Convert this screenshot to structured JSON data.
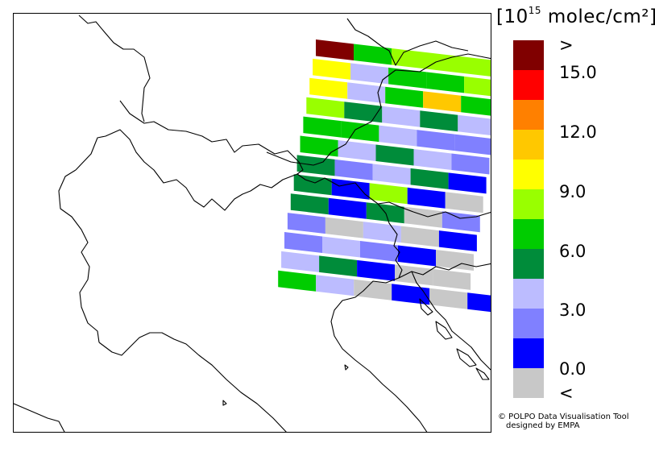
{
  "legend": {
    "units_prefix": "[10",
    "units_exponent": "15",
    "units_suffix": " molec/cm²]",
    "colors": [
      "#800000",
      "#ff0000",
      "#ff8000",
      "#ffc800",
      "#ffff00",
      "#99ff00",
      "#00cc00",
      "#008c3a",
      "#bcbcff",
      "#8080ff",
      "#0000ff",
      "#c8c8c8"
    ],
    "labels": [
      ">",
      "15.0",
      "12.0",
      "9.0",
      "6.0",
      "3.0",
      "0.0",
      "<"
    ]
  },
  "credit": {
    "line1": "© POLPO Data Visualisation Tool",
    "line2": "designed by EMPA"
  },
  "map": {
    "grid_rows": [
      [
        0,
        6,
        5,
        5,
        5
      ],
      [
        4,
        8,
        6,
        6,
        5
      ],
      [
        4,
        8,
        6,
        3,
        6
      ],
      [
        5,
        7,
        8,
        7,
        8
      ],
      [
        6,
        6,
        8,
        9,
        9
      ],
      [
        6,
        8,
        7,
        8,
        9
      ],
      [
        7,
        9,
        8,
        7,
        10
      ],
      [
        7,
        10,
        5,
        10,
        11
      ],
      [
        7,
        10,
        7,
        11,
        9
      ],
      [
        9,
        11,
        8,
        11,
        10
      ],
      [
        9,
        8,
        9,
        10,
        11
      ],
      [
        8,
        7,
        10,
        11,
        11
      ],
      [
        6,
        8,
        11,
        10,
        11
      ]
    ],
    "overflow_cells": [
      {
        "row": 12,
        "col": 5,
        "value": 10
      },
      {
        "row": 12,
        "col": 6,
        "value": 11
      }
    ]
  }
}
